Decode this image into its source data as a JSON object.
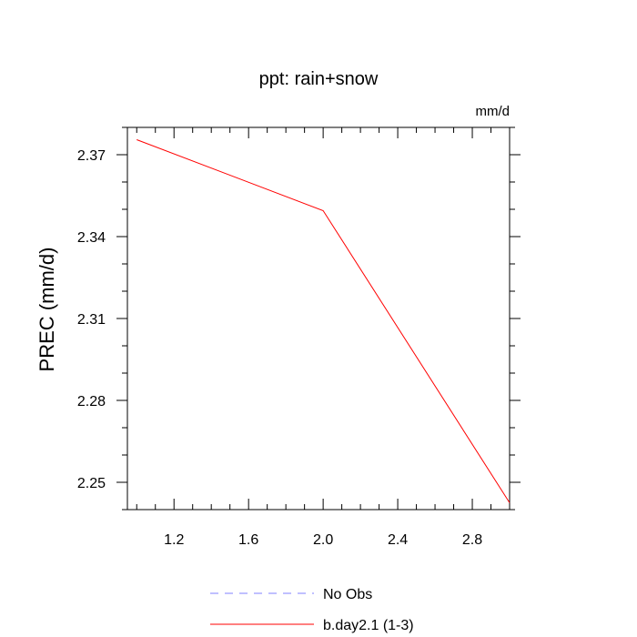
{
  "chart_data": {
    "type": "line",
    "title": "ppt: rain+snow",
    "units_label": "mm/d",
    "xlabel": "",
    "ylabel": "PREC  (mm/d)",
    "xlim": [
      0.95,
      3.0
    ],
    "ylim": [
      2.24,
      2.38
    ],
    "x_ticks": [
      1.2,
      1.6,
      2.0,
      2.4,
      2.8
    ],
    "x_tick_labels": [
      "1.2",
      "1.6",
      "2.0",
      "2.4",
      "2.8"
    ],
    "y_ticks": [
      2.25,
      2.28,
      2.31,
      2.34,
      2.37
    ],
    "y_tick_labels": [
      "2.25",
      "2.28",
      "2.31",
      "2.34",
      "2.37"
    ],
    "grid": false,
    "legend_position": "bottom-center",
    "series": [
      {
        "name": "No Obs",
        "color": "#8080ff",
        "dash": "dashed",
        "x": [],
        "y": []
      },
      {
        "name": "b.day2.1 (1-3)",
        "color": "#ff0000",
        "dash": "solid",
        "x": [
          1.0,
          2.0,
          3.0
        ],
        "y": [
          2.3755,
          2.3495,
          2.2425
        ]
      }
    ]
  }
}
